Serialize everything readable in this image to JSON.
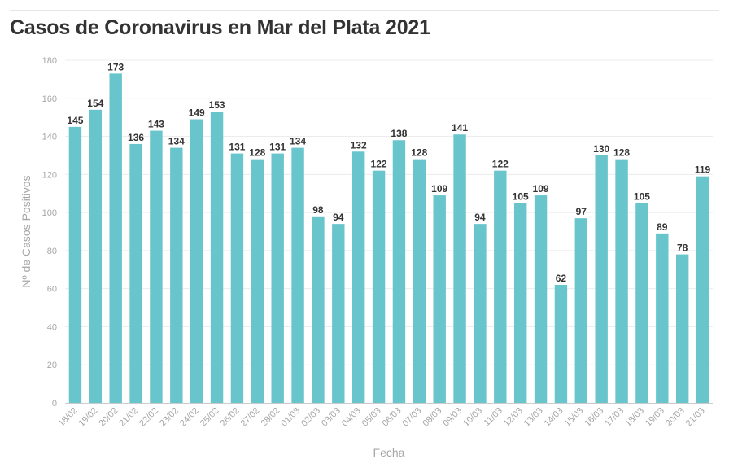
{
  "title": "Casos de Coronavirus en Mar del Plata 2021",
  "colors": {
    "bar": "#69c5cc",
    "grid": "#ececec",
    "axis": "#cccccc",
    "tick_text": "#a6a6a6",
    "label_text": "#333333"
  },
  "chart_data": {
    "type": "bar",
    "title": "Casos de Coronavirus en Mar del Plata 2021",
    "xlabel": "Fecha",
    "ylabel": "Nº de Casos Positivos",
    "ylim": [
      0,
      180
    ],
    "yticks": [
      0,
      20,
      40,
      60,
      80,
      100,
      120,
      140,
      160,
      180
    ],
    "grid": true,
    "categories": [
      "18/02",
      "19/02",
      "20/02",
      "21/02",
      "22/02",
      "23/02",
      "24/02",
      "25/02",
      "26/02",
      "27/02",
      "28/02",
      "01/03",
      "02/03",
      "03/03",
      "04/03",
      "05/03",
      "06/03",
      "07/03",
      "08/03",
      "09/03",
      "10/03",
      "11/03",
      "12/03",
      "13/03",
      "14/03",
      "15/03",
      "16/03",
      "17/03",
      "18/03",
      "19/03",
      "20/03",
      "21/03"
    ],
    "values": [
      145,
      154,
      173,
      136,
      143,
      134,
      149,
      153,
      131,
      128,
      131,
      134,
      98,
      94,
      132,
      122,
      138,
      128,
      109,
      141,
      94,
      122,
      105,
      109,
      62,
      97,
      130,
      128,
      105,
      89,
      78,
      119
    ]
  }
}
